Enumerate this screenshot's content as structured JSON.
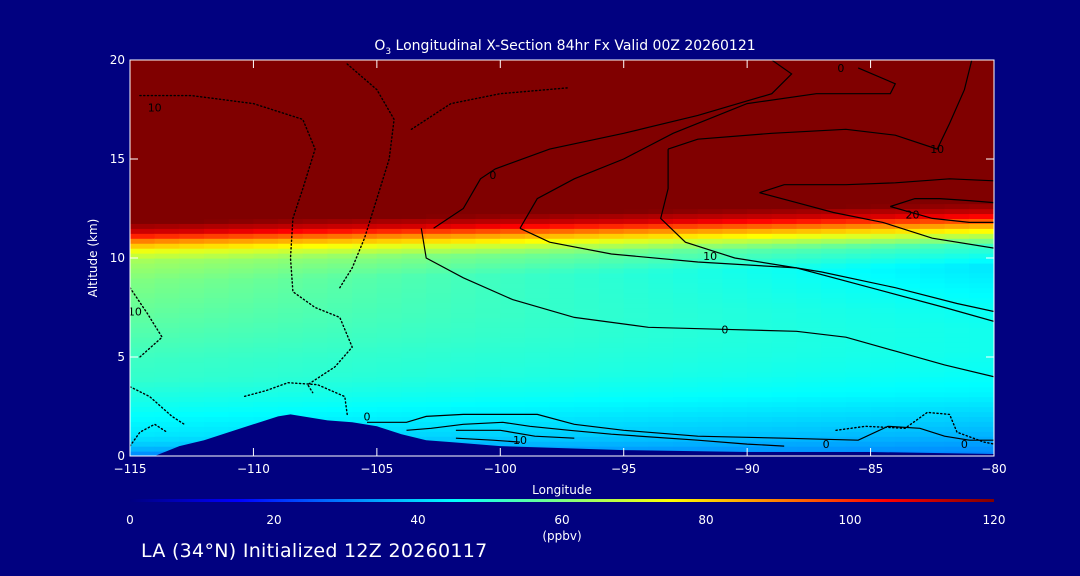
{
  "chart_data": {
    "type": "heatmap",
    "title_species": "O",
    "title_sub": "3",
    "title_rest": " Longitudinal X-Section 84hr  Fx Valid 00Z 20260121",
    "xlabel": "Longitude",
    "ylabel": "Altitude (km)",
    "xlim": [
      -115,
      -80
    ],
    "ylim": [
      0,
      20
    ],
    "x_ticks": [
      -115,
      -110,
      -105,
      -100,
      -95,
      -90,
      -85,
      -80
    ],
    "x_tick_labels": [
      "−115",
      "−110",
      "−105",
      "−100",
      "−95",
      "−90",
      "−85",
      "−80"
    ],
    "y_ticks": [
      0,
      5,
      10,
      15,
      20
    ],
    "y_tick_labels": [
      "0",
      "5",
      "10",
      "15",
      "20"
    ],
    "colorbar": {
      "min": 0,
      "max": 120,
      "ticks": [
        0,
        20,
        40,
        60,
        80,
        100,
        120
      ],
      "tick_labels": [
        "0",
        "20",
        "40",
        "60",
        "80",
        "100",
        "120"
      ],
      "unit": "(ppbv)",
      "colors": [
        "#000080",
        "#0000ff",
        "#0080ff",
        "#00ffff",
        "#80ff80",
        "#ffff00",
        "#ff8000",
        "#ff0000",
        "#800000"
      ]
    },
    "ozone_field": {
      "description_units": "ppbv",
      "stratosphere_value": 120,
      "tropopause_km_west": 11.5,
      "tropopause_km_east": 12.5,
      "profile_altitude_km": [
        0,
        0.5,
        1,
        2,
        3,
        4,
        5,
        6,
        7,
        8,
        9,
        10,
        10.5,
        11,
        11.5,
        12
      ],
      "profile_ppbv_west": [
        30,
        38,
        42,
        45,
        48,
        51,
        52,
        54,
        56,
        58,
        60,
        64,
        72,
        88,
        110,
        120
      ],
      "profile_ppbv_east": [
        30,
        33,
        36,
        40,
        44,
        46,
        47,
        47,
        46,
        44,
        42,
        52,
        68,
        88,
        110,
        120
      ]
    },
    "terrain": {
      "lon": [
        -115,
        -114,
        -113,
        -112,
        -111,
        -110,
        -109,
        -108.5,
        -108,
        -107,
        -106,
        -105,
        -104,
        -103,
        -102,
        -101,
        -100,
        -95,
        -90,
        -85,
        -80
      ],
      "alt_km": [
        0,
        0,
        0.5,
        0.8,
        1.2,
        1.6,
        2.0,
        2.1,
        2.0,
        1.8,
        1.7,
        1.5,
        1.1,
        0.8,
        0.7,
        0.6,
        0.5,
        0.3,
        0.2,
        0.2,
        0.1
      ]
    },
    "contour_labels": [
      {
        "text": "10",
        "lon": -114,
        "alt": 17.6
      },
      {
        "text": "10",
        "lon": -114.8,
        "alt": 7.3
      },
      {
        "text": "10",
        "lon": -91.5,
        "alt": 10.1
      },
      {
        "text": "10",
        "lon": -82.3,
        "alt": 15.5
      },
      {
        "text": "10",
        "lon": -99.2,
        "alt": 0.8
      },
      {
        "text": "20",
        "lon": -83.3,
        "alt": 12.2
      },
      {
        "text": "0",
        "lon": -105.4,
        "alt": 2.0
      },
      {
        "text": "0",
        "lon": -86.8,
        "alt": 0.6
      },
      {
        "text": "0",
        "lon": -81.2,
        "alt": 0.6
      },
      {
        "text": "0",
        "lon": -90.9,
        "alt": 6.4
      },
      {
        "text": "0",
        "lon": -86.2,
        "alt": 19.6
      },
      {
        "text": "0",
        "lon": -100.3,
        "alt": 14.2
      }
    ],
    "contours": [
      {
        "style": "dotted",
        "points": [
          [
            -114.6,
            18.2
          ],
          [
            -112.5,
            18.2
          ],
          [
            -110,
            17.8
          ],
          [
            -108,
            17
          ],
          [
            -107.5,
            15.5
          ],
          [
            -108,
            13.5
          ],
          [
            -108.4,
            12
          ],
          [
            -108.5,
            10
          ],
          [
            -108.4,
            8.3
          ],
          [
            -107.5,
            7.5
          ],
          [
            -106.5,
            7
          ],
          [
            -106,
            5.5
          ],
          [
            -106.7,
            4.5
          ],
          [
            -107.8,
            3.6
          ],
          [
            -107.6,
            3.2
          ]
        ]
      },
      {
        "style": "dotted",
        "points": [
          [
            -106.2,
            19.8
          ],
          [
            -105,
            18.5
          ],
          [
            -104.3,
            17
          ],
          [
            -104.5,
            15
          ],
          [
            -105,
            13
          ],
          [
            -105.5,
            11
          ],
          [
            -106,
            9.5
          ],
          [
            -106.5,
            8.5
          ]
        ]
      },
      {
        "style": "dotted",
        "points": [
          [
            -103.6,
            16.5
          ],
          [
            -102,
            17.8
          ],
          [
            -100,
            18.3
          ],
          [
            -97.2,
            18.6
          ]
        ]
      },
      {
        "style": "dotted",
        "points": [
          [
            -115,
            8.5
          ],
          [
            -114.3,
            7.2
          ],
          [
            -113.7,
            6
          ],
          [
            -114.6,
            5
          ]
        ]
      },
      {
        "style": "dotted",
        "points": [
          [
            -115,
            3.5
          ],
          [
            -114.2,
            3.0
          ],
          [
            -113.3,
            2.0
          ],
          [
            -112.8,
            1.6
          ]
        ]
      },
      {
        "style": "dotted",
        "points": [
          [
            -115,
            0.5
          ],
          [
            -114.6,
            1.2
          ],
          [
            -114,
            1.6
          ],
          [
            -113.5,
            1.2
          ]
        ]
      },
      {
        "style": "dotted",
        "points": [
          [
            -106.2,
            2.1
          ],
          [
            -106.3,
            3.0
          ],
          [
            -107.4,
            3.6
          ],
          [
            -108.6,
            3.7
          ],
          [
            -109.5,
            3.3
          ],
          [
            -110.4,
            3.0
          ]
        ]
      },
      {
        "style": "dotted",
        "points": [
          [
            -86.4,
            1.3
          ],
          [
            -85.2,
            1.5
          ],
          [
            -83.6,
            1.4
          ],
          [
            -82.7,
            2.2
          ],
          [
            -81.8,
            2.1
          ],
          [
            -81.5,
            1.2
          ],
          [
            -80.4,
            0.7
          ],
          [
            -80,
            0.6
          ]
        ]
      },
      {
        "style": "solid",
        "points": [
          [
            -102.7,
            11.5
          ],
          [
            -101.5,
            12.5
          ],
          [
            -100.8,
            14
          ],
          [
            -100.2,
            14.5
          ],
          [
            -98,
            15.5
          ],
          [
            -95,
            16.3
          ],
          [
            -92,
            17.2
          ],
          [
            -89,
            18.3
          ],
          [
            -88.2,
            19.3
          ],
          [
            -89,
            20
          ]
        ]
      },
      {
        "style": "solid",
        "points": [
          [
            -103.2,
            11.5
          ],
          [
            -103.0,
            10.0
          ],
          [
            -101.5,
            9.0
          ],
          [
            -99.5,
            7.9
          ],
          [
            -97,
            7.0
          ],
          [
            -94,
            6.5
          ],
          [
            -91,
            6.4
          ],
          [
            -88,
            6.3
          ],
          [
            -86,
            6.0
          ],
          [
            -84,
            5.3
          ],
          [
            -82,
            4.6
          ],
          [
            -80,
            4.0
          ]
        ]
      },
      {
        "style": "solid",
        "points": [
          [
            -99.2,
            11.5
          ],
          [
            -98.0,
            10.8
          ],
          [
            -95.5,
            10.2
          ],
          [
            -92,
            9.8
          ],
          [
            -88,
            9.5
          ],
          [
            -85,
            8.5
          ],
          [
            -82,
            7.5
          ],
          [
            -80,
            6.8
          ]
        ]
      },
      {
        "style": "solid",
        "points": [
          [
            -99.2,
            11.5
          ],
          [
            -98.5,
            13
          ],
          [
            -97,
            14
          ],
          [
            -95,
            15
          ],
          [
            -93,
            16.3
          ],
          [
            -90,
            17.8
          ],
          [
            -87.2,
            18.3
          ],
          [
            -84.2,
            18.3
          ],
          [
            -84,
            18.8
          ],
          [
            -85.5,
            19.6
          ]
        ]
      },
      {
        "style": "solid",
        "points": [
          [
            -93.2,
            15.5
          ],
          [
            -93.2,
            13.5
          ],
          [
            -93.5,
            12
          ],
          [
            -92.5,
            10.8
          ],
          [
            -90.5,
            10.0
          ],
          [
            -87,
            9.3
          ],
          [
            -84,
            8.5
          ],
          [
            -81.5,
            7.7
          ],
          [
            -80,
            7.3
          ]
        ]
      },
      {
        "style": "solid",
        "points": [
          [
            -93.2,
            15.5
          ],
          [
            -92,
            16
          ],
          [
            -89,
            16.3
          ],
          [
            -86,
            16.5
          ],
          [
            -84,
            16.2
          ],
          [
            -82.3,
            15.5
          ],
          [
            -81.8,
            16.8
          ],
          [
            -81.2,
            18.5
          ],
          [
            -80.9,
            20
          ]
        ]
      },
      {
        "style": "solid",
        "points": [
          [
            -89.5,
            13.3
          ],
          [
            -88,
            12.8
          ],
          [
            -86.5,
            12.3
          ],
          [
            -84.5,
            11.8
          ],
          [
            -82.5,
            11.0
          ],
          [
            -80,
            10.5
          ]
        ]
      },
      {
        "style": "solid",
        "points": [
          [
            -89.5,
            13.3
          ],
          [
            -88.5,
            13.7
          ],
          [
            -86,
            13.7
          ],
          [
            -84,
            13.8
          ],
          [
            -81.8,
            14.0
          ],
          [
            -80,
            13.9
          ]
        ]
      },
      {
        "style": "solid",
        "points": [
          [
            -84.2,
            12.6
          ],
          [
            -83.2,
            13.0
          ],
          [
            -82.2,
            13.0
          ],
          [
            -81,
            12.9
          ],
          [
            -80,
            12.8
          ]
        ]
      },
      {
        "style": "solid",
        "points": [
          [
            -84.2,
            12.6
          ],
          [
            -82.5,
            12.0
          ],
          [
            -81,
            11.8
          ],
          [
            -80,
            11.8
          ]
        ]
      },
      {
        "style": "solid",
        "points": [
          [
            -105.4,
            1.7
          ],
          [
            -103.8,
            1.7
          ],
          [
            -103,
            2.0
          ],
          [
            -101.5,
            2.1
          ],
          [
            -100,
            2.1
          ],
          [
            -98.5,
            2.1
          ],
          [
            -97,
            1.6
          ],
          [
            -95,
            1.3
          ],
          [
            -92,
            1.0
          ],
          [
            -88.5,
            0.9
          ],
          [
            -85.5,
            0.8
          ],
          [
            -84.3,
            1.5
          ],
          [
            -83,
            1.4
          ],
          [
            -82,
            1.0
          ],
          [
            -81,
            0.8
          ],
          [
            -80,
            0.8
          ]
        ]
      },
      {
        "style": "solid",
        "points": [
          [
            -103.8,
            1.3
          ],
          [
            -102.8,
            1.4
          ],
          [
            -101.5,
            1.6
          ],
          [
            -99.9,
            1.7
          ],
          [
            -98.8,
            1.5
          ],
          [
            -97.2,
            1.3
          ],
          [
            -95.5,
            1.1
          ],
          [
            -92,
            0.8
          ],
          [
            -90,
            0.6
          ],
          [
            -88.5,
            0.5
          ]
        ]
      },
      {
        "style": "solid",
        "points": [
          [
            -101.8,
            1.3
          ],
          [
            -100,
            1.3
          ],
          [
            -98.6,
            1.0
          ],
          [
            -97.0,
            0.9
          ]
        ]
      },
      {
        "style": "solid",
        "points": [
          [
            -101.8,
            0.9
          ],
          [
            -100.3,
            0.8
          ],
          [
            -99.2,
            0.7
          ]
        ]
      }
    ]
  },
  "footer": {
    "text": "LA (34°N) Initialized 12Z 20260117"
  }
}
